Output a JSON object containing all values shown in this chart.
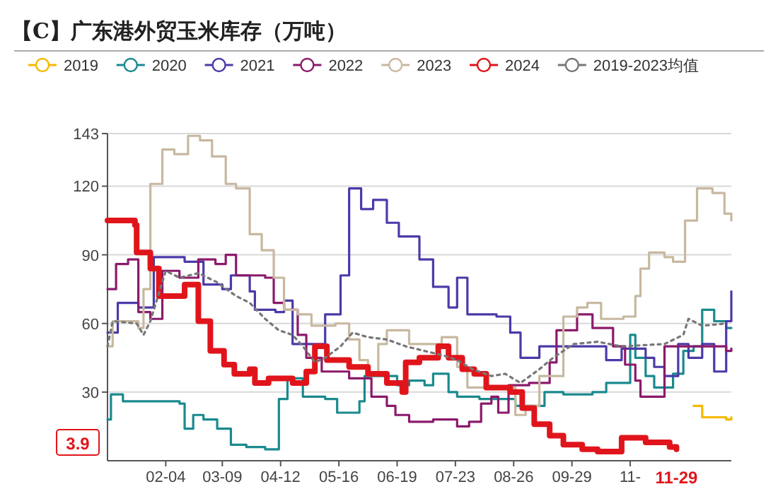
{
  "chart_data": {
    "type": "step",
    "title": "【C】广东港外贸玉米库存（万吨）",
    "legend": "top",
    "grid": "y",
    "xlim": [
      "--01-01",
      "--12-31"
    ],
    "xticks": [
      {
        "value": "--02-04",
        "label": "02-04"
      },
      {
        "value": "--03-09",
        "label": "03-09"
      },
      {
        "value": "--04-12",
        "label": "04-12"
      },
      {
        "value": "--05-16",
        "label": "05-16"
      },
      {
        "value": "--06-19",
        "label": "06-19"
      },
      {
        "value": "--07-23",
        "label": "07-23"
      },
      {
        "value": "--08-26",
        "label": "08-26"
      },
      {
        "value": "--09-29",
        "label": "09-29"
      },
      {
        "value": "--11-02",
        "label": "11-"
      }
    ],
    "ylim": [
      0,
      143
    ],
    "yticks": [
      30,
      60,
      90,
      120,
      143
    ],
    "annotations": [
      "3.9",
      "11-29"
    ],
    "series": [
      {
        "name": "2019",
        "color": "#f5b800",
        "x": [
          "--12-09",
          "--12-14",
          "--12-28",
          "--12-31"
        ],
        "values": [
          24,
          19,
          18,
          19
        ]
      },
      {
        "name": "2020",
        "color": "#1a8a8e",
        "x": [
          "--01-01",
          "--01-03",
          "--01-10",
          "--02-12",
          "--02-15",
          "--02-20",
          "--02-26",
          "--03-06",
          "--03-14",
          "--03-23",
          "--04-03",
          "--04-11",
          "--04-16",
          "--04-25",
          "--05-08",
          "--05-15",
          "--05-28",
          "--05-31",
          "--06-19",
          "--06-26",
          "--07-05",
          "--07-10",
          "--07-19",
          "--07-24",
          "--08-06",
          "--08-27",
          "--09-13",
          "--09-24",
          "--10-11",
          "--10-19",
          "--11-02",
          "--11-05",
          "--11-11",
          "--11-16",
          "--11-27",
          "--12-03",
          "--12-09",
          "--12-14",
          "--12-21",
          "--12-28",
          "--12-31"
        ],
        "values": [
          18,
          29,
          26,
          25,
          14,
          20,
          18,
          14,
          7,
          6,
          5,
          27,
          36,
          28,
          27,
          21,
          26,
          37,
          33,
          35,
          33,
          38,
          30,
          28,
          27,
          24,
          30,
          29,
          30,
          34,
          55,
          45,
          37,
          32,
          38,
          48,
          50,
          66,
          61,
          58,
          58
        ]
      },
      {
        "name": "2021",
        "color": "#4b3aa8",
        "x": [
          "--01-01",
          "--01-07",
          "--01-19",
          "--01-28",
          "--02-15",
          "--02-26",
          "--03-09",
          "--03-14",
          "--03-25",
          "--03-28",
          "--04-09",
          "--04-14",
          "--04-19",
          "--05-08",
          "--05-17",
          "--05-22",
          "--05-29",
          "--06-05",
          "--06-13",
          "--06-20",
          "--07-02",
          "--07-10",
          "--07-19",
          "--07-24",
          "--07-30",
          "--08-16",
          "--08-24",
          "--08-30",
          "--09-10",
          "--10-08",
          "--10-19",
          "--10-28",
          "--11-11",
          "--11-16",
          "--11-22",
          "--11-30",
          "--12-06",
          "--12-14",
          "--12-21",
          "--12-28",
          "--12-31"
        ],
        "values": [
          56,
          69,
          67,
          89,
          87,
          77,
          75,
          81,
          74,
          66,
          65,
          70,
          51,
          64,
          81,
          119,
          110,
          114,
          104,
          98,
          88,
          76,
          67,
          80,
          64,
          63,
          56,
          45,
          50,
          50,
          44,
          49,
          45,
          41,
          37,
          51,
          45,
          51,
          39,
          61,
          74
        ]
      },
      {
        "name": "2022",
        "color": "#8b1a6b",
        "x": [
          "--01-01",
          "--01-06",
          "--01-13",
          "--01-19",
          "--01-26",
          "--02-02",
          "--02-12",
          "--02-23",
          "--03-05",
          "--03-11",
          "--03-17",
          "--04-03",
          "--04-08",
          "--04-14",
          "--04-22",
          "--04-27",
          "--05-06",
          "--05-22",
          "--06-04",
          "--06-13",
          "--06-18",
          "--06-26",
          "--07-10",
          "--07-24",
          "--07-31",
          "--08-07",
          "--08-13",
          "--08-17",
          "--08-23",
          "--09-04",
          "--09-16",
          "--09-20",
          "--10-02",
          "--10-11",
          "--10-23",
          "--10-30",
          "--11-05",
          "--11-08",
          "--11-22",
          "--12-28",
          "--12-31"
        ],
        "values": [
          75,
          86,
          88,
          65,
          62,
          83,
          80,
          88,
          86,
          90,
          81,
          80,
          69,
          66,
          55,
          45,
          39,
          36,
          28,
          24,
          20,
          17,
          18,
          15,
          17,
          25,
          28,
          21,
          33,
          34,
          43,
          57,
          64,
          58,
          50,
          42,
          35,
          28,
          50,
          48,
          49
        ]
      },
      {
        "name": "2023",
        "color": "#c8b8a0",
        "x": [
          "--01-01",
          "--01-04",
          "--01-19",
          "--01-22",
          "--01-26",
          "--02-02",
          "--02-09",
          "--02-17",
          "--02-24",
          "--03-03",
          "--03-11",
          "--03-17",
          "--03-25",
          "--04-01",
          "--04-08",
          "--04-14",
          "--04-22",
          "--04-30",
          "--05-14",
          "--05-22",
          "--05-28",
          "--06-02",
          "--06-08",
          "--06-13",
          "--06-26",
          "--07-15",
          "--07-24",
          "--07-30",
          "--08-27",
          "--09-02",
          "--09-10",
          "--09-24",
          "--10-02",
          "--10-08",
          "--10-16",
          "--10-29",
          "--11-05",
          "--11-08",
          "--11-13",
          "--11-22",
          "--11-27",
          "--12-04",
          "--12-11",
          "--12-20",
          "--12-27",
          "--12-31"
        ],
        "values": [
          50,
          61,
          58,
          75,
          121,
          136,
          134,
          142,
          140,
          133,
          121,
          119,
          99,
          92,
          80,
          66,
          64,
          59,
          60,
          53,
          44,
          38,
          51,
          57,
          51,
          54,
          41,
          32,
          20,
          24,
          37,
          63,
          67,
          69,
          62,
          63,
          72,
          84,
          91,
          89,
          87,
          105,
          119,
          117,
          108,
          105
        ]
      },
      {
        "name": "2024",
        "color": "#e0151b",
        "x": [
          "--01-01",
          "--01-17",
          "--01-18",
          "--01-26",
          "--01-31",
          "--02-15",
          "--02-23",
          "--03-02",
          "--03-10",
          "--03-16",
          "--03-25",
          "--03-28",
          "--04-05",
          "--04-19",
          "--04-27",
          "--05-02",
          "--05-09",
          "--05-22",
          "--06-02",
          "--06-13",
          "--06-22",
          "--06-24",
          "--07-02",
          "--07-13",
          "--07-19",
          "--07-27",
          "--08-03",
          "--08-10",
          "--08-24",
          "--08-31",
          "--09-07",
          "--09-16",
          "--09-24",
          "--10-05",
          "--10-14",
          "--10-28",
          "--11-11",
          "--11-25",
          "--11-29"
        ],
        "values": [
          105,
          103,
          91,
          84,
          72,
          77,
          61,
          48,
          42,
          38,
          40,
          34,
          36,
          34,
          39,
          50,
          44,
          41,
          38,
          34,
          30,
          43,
          45,
          50,
          45,
          40,
          38,
          32,
          30,
          23,
          16,
          11,
          7,
          5,
          4,
          10,
          8,
          6,
          5
        ]
      },
      {
        "name": "2019-2023均值",
        "color": "#777777",
        "type": "line",
        "line_style": "dotted",
        "x": [
          "--01-01",
          "--01-04",
          "--01-18",
          "--01-22",
          "--01-26",
          "--02-04",
          "--02-12",
          "--02-23",
          "--03-06",
          "--03-17",
          "--03-25",
          "--04-03",
          "--04-11",
          "--04-19",
          "--04-25",
          "--05-02",
          "--05-08",
          "--05-17",
          "--05-24",
          "--06-02",
          "--06-13",
          "--06-24",
          "--07-05",
          "--07-16",
          "--07-24",
          "--08-02",
          "--08-13",
          "--08-21",
          "--08-30",
          "--09-10",
          "--09-18",
          "--09-30",
          "--10-14",
          "--10-28",
          "--11-22",
          "--12-03",
          "--12-06",
          "--12-14",
          "--12-28"
        ],
        "values": [
          50,
          61,
          60,
          55,
          61,
          83,
          80,
          82,
          78,
          72,
          69,
          62,
          57,
          55,
          50,
          43,
          45,
          50,
          56,
          54,
          53,
          50,
          48,
          46,
          44,
          40,
          37,
          38,
          34,
          40,
          45,
          51,
          52,
          50,
          51,
          55,
          62,
          59,
          60
        ]
      }
    ]
  }
}
